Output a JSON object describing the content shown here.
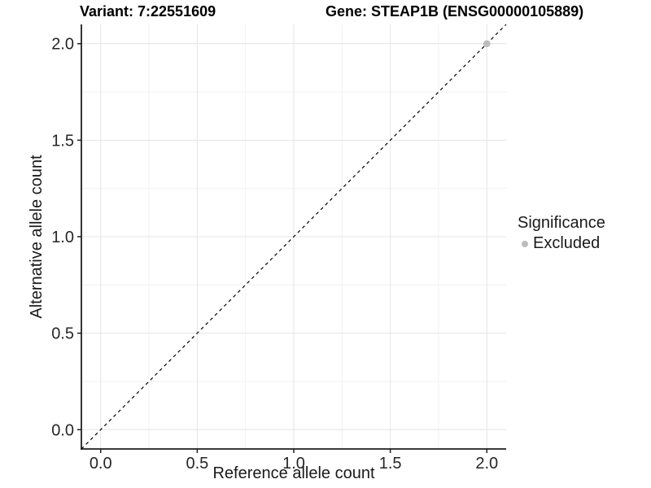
{
  "chart_data": {
    "type": "scatter",
    "title_left": "Variant: 7:22551609",
    "title_right": "Gene: STEAP1B (ENSG00000105889)",
    "xlabel": "Reference allele count",
    "ylabel": "Alternative allele count",
    "xlim": [
      -0.1,
      2.1
    ],
    "ylim": [
      -0.1,
      2.1
    ],
    "xticks": {
      "values": [
        0,
        0.5,
        1,
        1.5,
        2
      ],
      "labels": [
        "0.0",
        "0.5",
        "1.0",
        "1.5",
        "2.0"
      ]
    },
    "yticks": {
      "values": [
        0,
        0.5,
        1,
        1.5,
        2
      ],
      "labels": [
        "0.0",
        "0.5",
        "1.0",
        "1.5",
        "2.0"
      ]
    },
    "grid_minor_ticks": [
      0.25,
      0.75,
      1.25,
      1.75
    ],
    "grid": true,
    "points": [
      {
        "x": 2.0,
        "y": 2.0,
        "series": "Excluded"
      }
    ],
    "reference_line": {
      "style": "dashed",
      "slope": 1,
      "intercept": 0,
      "color": "#000000"
    },
    "legend": {
      "title": "Significance",
      "position": "right",
      "items": [
        {
          "label": "Excluded",
          "color": "#bdbdbd"
        }
      ]
    },
    "colors": {
      "excluded": "#bdbdbd",
      "grid_major": "#e4e4e4",
      "grid_minor": "#f1f1f1",
      "axis": "#1f1f1f"
    }
  }
}
